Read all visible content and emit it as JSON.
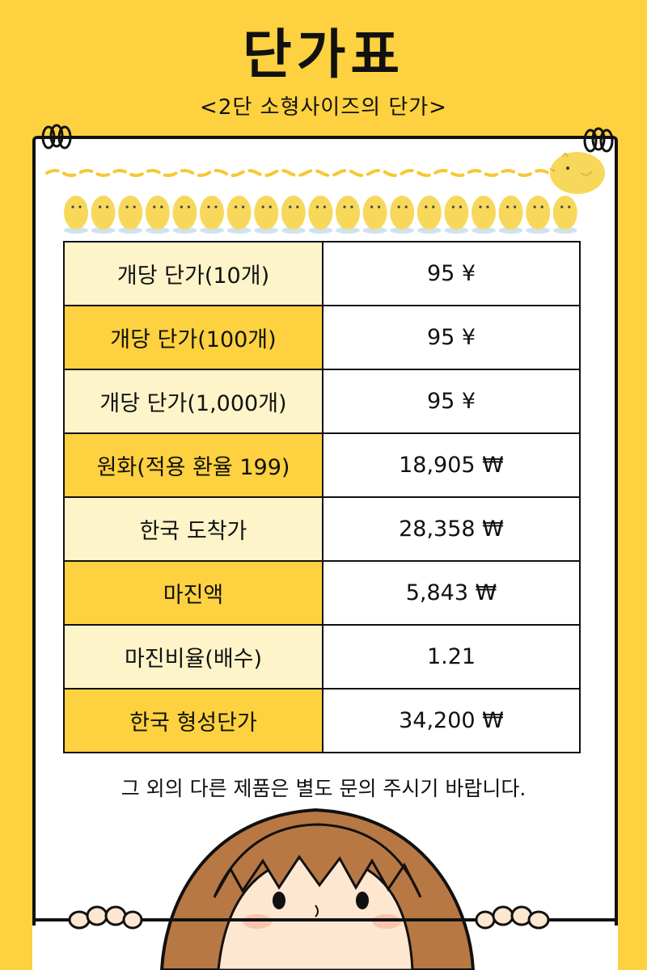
{
  "title": "단가표",
  "subtitle": "<2단 소형사이즈의 단가>",
  "rows": [
    {
      "label": "개당 단가(10개)",
      "value": "95 ¥"
    },
    {
      "label": "개당 단가(100개)",
      "value": "95 ¥"
    },
    {
      "label": "개당 단가(1,000개)",
      "value": "95 ¥"
    },
    {
      "label": "원화(적용 환율 199)",
      "value": "18,905 ₩"
    },
    {
      "label": "한국 도착가",
      "value": "28,358 ₩"
    },
    {
      "label": "마진액",
      "value": "5,843 ₩"
    },
    {
      "label": "마진비율(배수)",
      "value": "1.21"
    },
    {
      "label": "한국 형성단가",
      "value": "34,200 ₩"
    }
  ],
  "footer_note": "그 외의 다른 제품은 별도 문의 주시기 바랍니다.",
  "colors": {
    "background": "#fdd13f",
    "label_light": "#fef4c9",
    "label_dark": "#fdd13f",
    "chick": "#f7d85a"
  },
  "icons": [
    "chick-icon",
    "binder-clip-icon",
    "girl-illustration"
  ]
}
